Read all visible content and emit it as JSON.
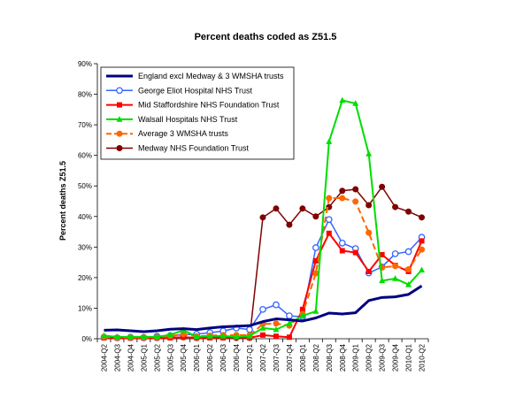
{
  "chart_data": {
    "type": "line",
    "title": "Percent deaths coded as Z51.5",
    "xlabel": "",
    "ylabel": "Percent deaths Z51.5",
    "ylim": [
      0,
      90
    ],
    "y_ticks": [
      "0%",
      "10%",
      "20%",
      "30%",
      "40%",
      "50%",
      "60%",
      "70%",
      "80%",
      "90%"
    ],
    "x": [
      "2004-Q2",
      "2004-Q3",
      "2004-Q4",
      "2005-Q1",
      "2005-Q2",
      "2005-Q3",
      "2005-Q4",
      "2006-Q1",
      "2006-Q2",
      "2006-Q3",
      "2006-Q4",
      "2007-Q1",
      "2007-Q2",
      "2007-Q3",
      "2007-Q4",
      "2008-Q1",
      "2008-Q2",
      "2008-Q3",
      "2008-Q4",
      "2009-Q1",
      "2009-Q2",
      "2009-Q3",
      "2009-Q4",
      "2010-Q1",
      "2010-Q2"
    ],
    "grid": false,
    "legend_position": "top-left",
    "series": [
      {
        "name": "England excl Medway & 3 WMSHA trusts",
        "color": "#000080",
        "marker": "none",
        "dash": "solid",
        "width": 3,
        "values": [
          2.8,
          2.9,
          2.6,
          2.3,
          2.6,
          3.1,
          3.3,
          3.0,
          3.5,
          3.9,
          4.1,
          4.3,
          5.6,
          6.5,
          6.2,
          5.8,
          6.8,
          8.4,
          8.1,
          8.5,
          12.5,
          13.5,
          13.7,
          14.5,
          17.3
        ]
      },
      {
        "name": "George Eliot Hospital NHS Trust",
        "color": "#3366FF",
        "marker": "circle-open",
        "dash": "solid",
        "width": 1.5,
        "values": [
          0.5,
          0.3,
          0.5,
          0.3,
          0.8,
          1.0,
          1.3,
          1.5,
          2.0,
          2.5,
          3.5,
          3.0,
          9.6,
          11.1,
          7.5,
          7.2,
          29.8,
          39.0,
          31.3,
          29.5,
          21.5,
          23.5,
          27.8,
          28.5,
          33.2
        ]
      },
      {
        "name": "Mid Staffordshire NHS Foundation Trust",
        "color": "#FF0000",
        "marker": "square",
        "dash": "solid",
        "width": 2,
        "values": [
          0.3,
          0.3,
          0.3,
          0.3,
          0.3,
          0.3,
          0.5,
          0.3,
          0.3,
          0.3,
          0.5,
          0.3,
          1.2,
          0.8,
          0.5,
          9.6,
          25.5,
          34.5,
          28.8,
          28.2,
          22.0,
          27.5,
          24.0,
          22.0,
          32.0
        ]
      },
      {
        "name": "Walsall Hospitals NHS Trust",
        "color": "#00DD00",
        "marker": "triangle",
        "dash": "solid",
        "width": 2,
        "values": [
          1.0,
          0.6,
          0.6,
          0.6,
          0.6,
          1.3,
          2.8,
          0.6,
          0.9,
          0.9,
          0.6,
          0.9,
          3.5,
          3.0,
          5.0,
          7.5,
          9.0,
          64.5,
          78.0,
          77.0,
          60.5,
          19.0,
          19.7,
          17.7,
          22.5
        ]
      },
      {
        "name": "Average 3 WMSHA trusts",
        "color": "#FF6600",
        "marker": "circle",
        "dash": "dashed",
        "width": 2,
        "values": [
          0.6,
          0.4,
          0.5,
          0.4,
          0.5,
          0.9,
          1.5,
          0.8,
          1.0,
          1.2,
          1.2,
          1.2,
          4.8,
          5.0,
          4.3,
          8.1,
          21.4,
          46.0,
          46.0,
          44.9,
          34.7,
          23.3,
          23.8,
          22.7,
          29.2
        ]
      },
      {
        "name": "Medway NHS Foundation Trust",
        "color": "#800000",
        "marker": "circle",
        "dash": "solid",
        "width": 1.5,
        "values": [
          0.5,
          0.3,
          0.3,
          0.5,
          0.3,
          0.5,
          0.5,
          0.3,
          0.5,
          0.5,
          0.3,
          0.3,
          39.7,
          42.6,
          37.3,
          42.6,
          40.0,
          43.1,
          48.4,
          48.9,
          43.7,
          49.7,
          43.1,
          41.6,
          39.7
        ]
      }
    ]
  }
}
